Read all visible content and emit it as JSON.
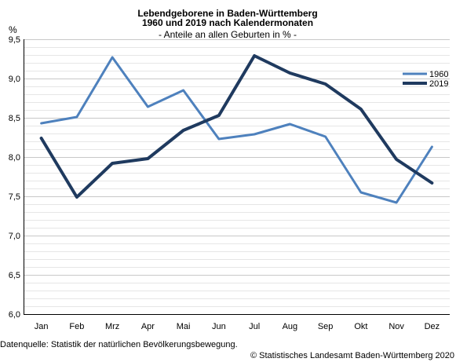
{
  "chart_data": {
    "type": "line",
    "title_lines": [
      "Lebendgeborene in Baden-Württemberg",
      "1960 und 2019 nach Kalendermonaten"
    ],
    "subtitle": "- Anteile an allen Geburten in % -",
    "ylabel": "%",
    "xlabel": "",
    "categories": [
      "Jan",
      "Feb",
      "Mrz",
      "Apr",
      "Mai",
      "Jun",
      "Jul",
      "Aug",
      "Sep",
      "Okt",
      "Nov",
      "Dez"
    ],
    "ylim": [
      6.0,
      9.5
    ],
    "yticks": [
      6.0,
      6.5,
      7.0,
      7.5,
      8.0,
      8.5,
      9.0,
      9.5
    ],
    "ytick_labels": [
      "6,0",
      "6,5",
      "7,0",
      "7,5",
      "8,0",
      "8,5",
      "9,0",
      "9,5"
    ],
    "grid": true,
    "legend_position": "top-right",
    "series": [
      {
        "name": "1960",
        "color": "#4e81bd",
        "values": [
          8.43,
          8.51,
          9.27,
          8.64,
          8.85,
          8.23,
          8.29,
          8.42,
          8.26,
          7.55,
          7.42,
          8.13
        ]
      },
      {
        "name": "2019",
        "color": "#1f3a5f",
        "values": [
          8.24,
          7.49,
          7.92,
          7.98,
          8.34,
          8.53,
          9.29,
          9.07,
          8.93,
          8.61,
          7.97,
          7.67
        ]
      }
    ]
  },
  "footer": {
    "source": "Datenquelle: Statistik der natürlichen Bevölkerungsbewegung.",
    "copyright": "© Statistisches Landesamt Baden-Württemberg 2020"
  }
}
